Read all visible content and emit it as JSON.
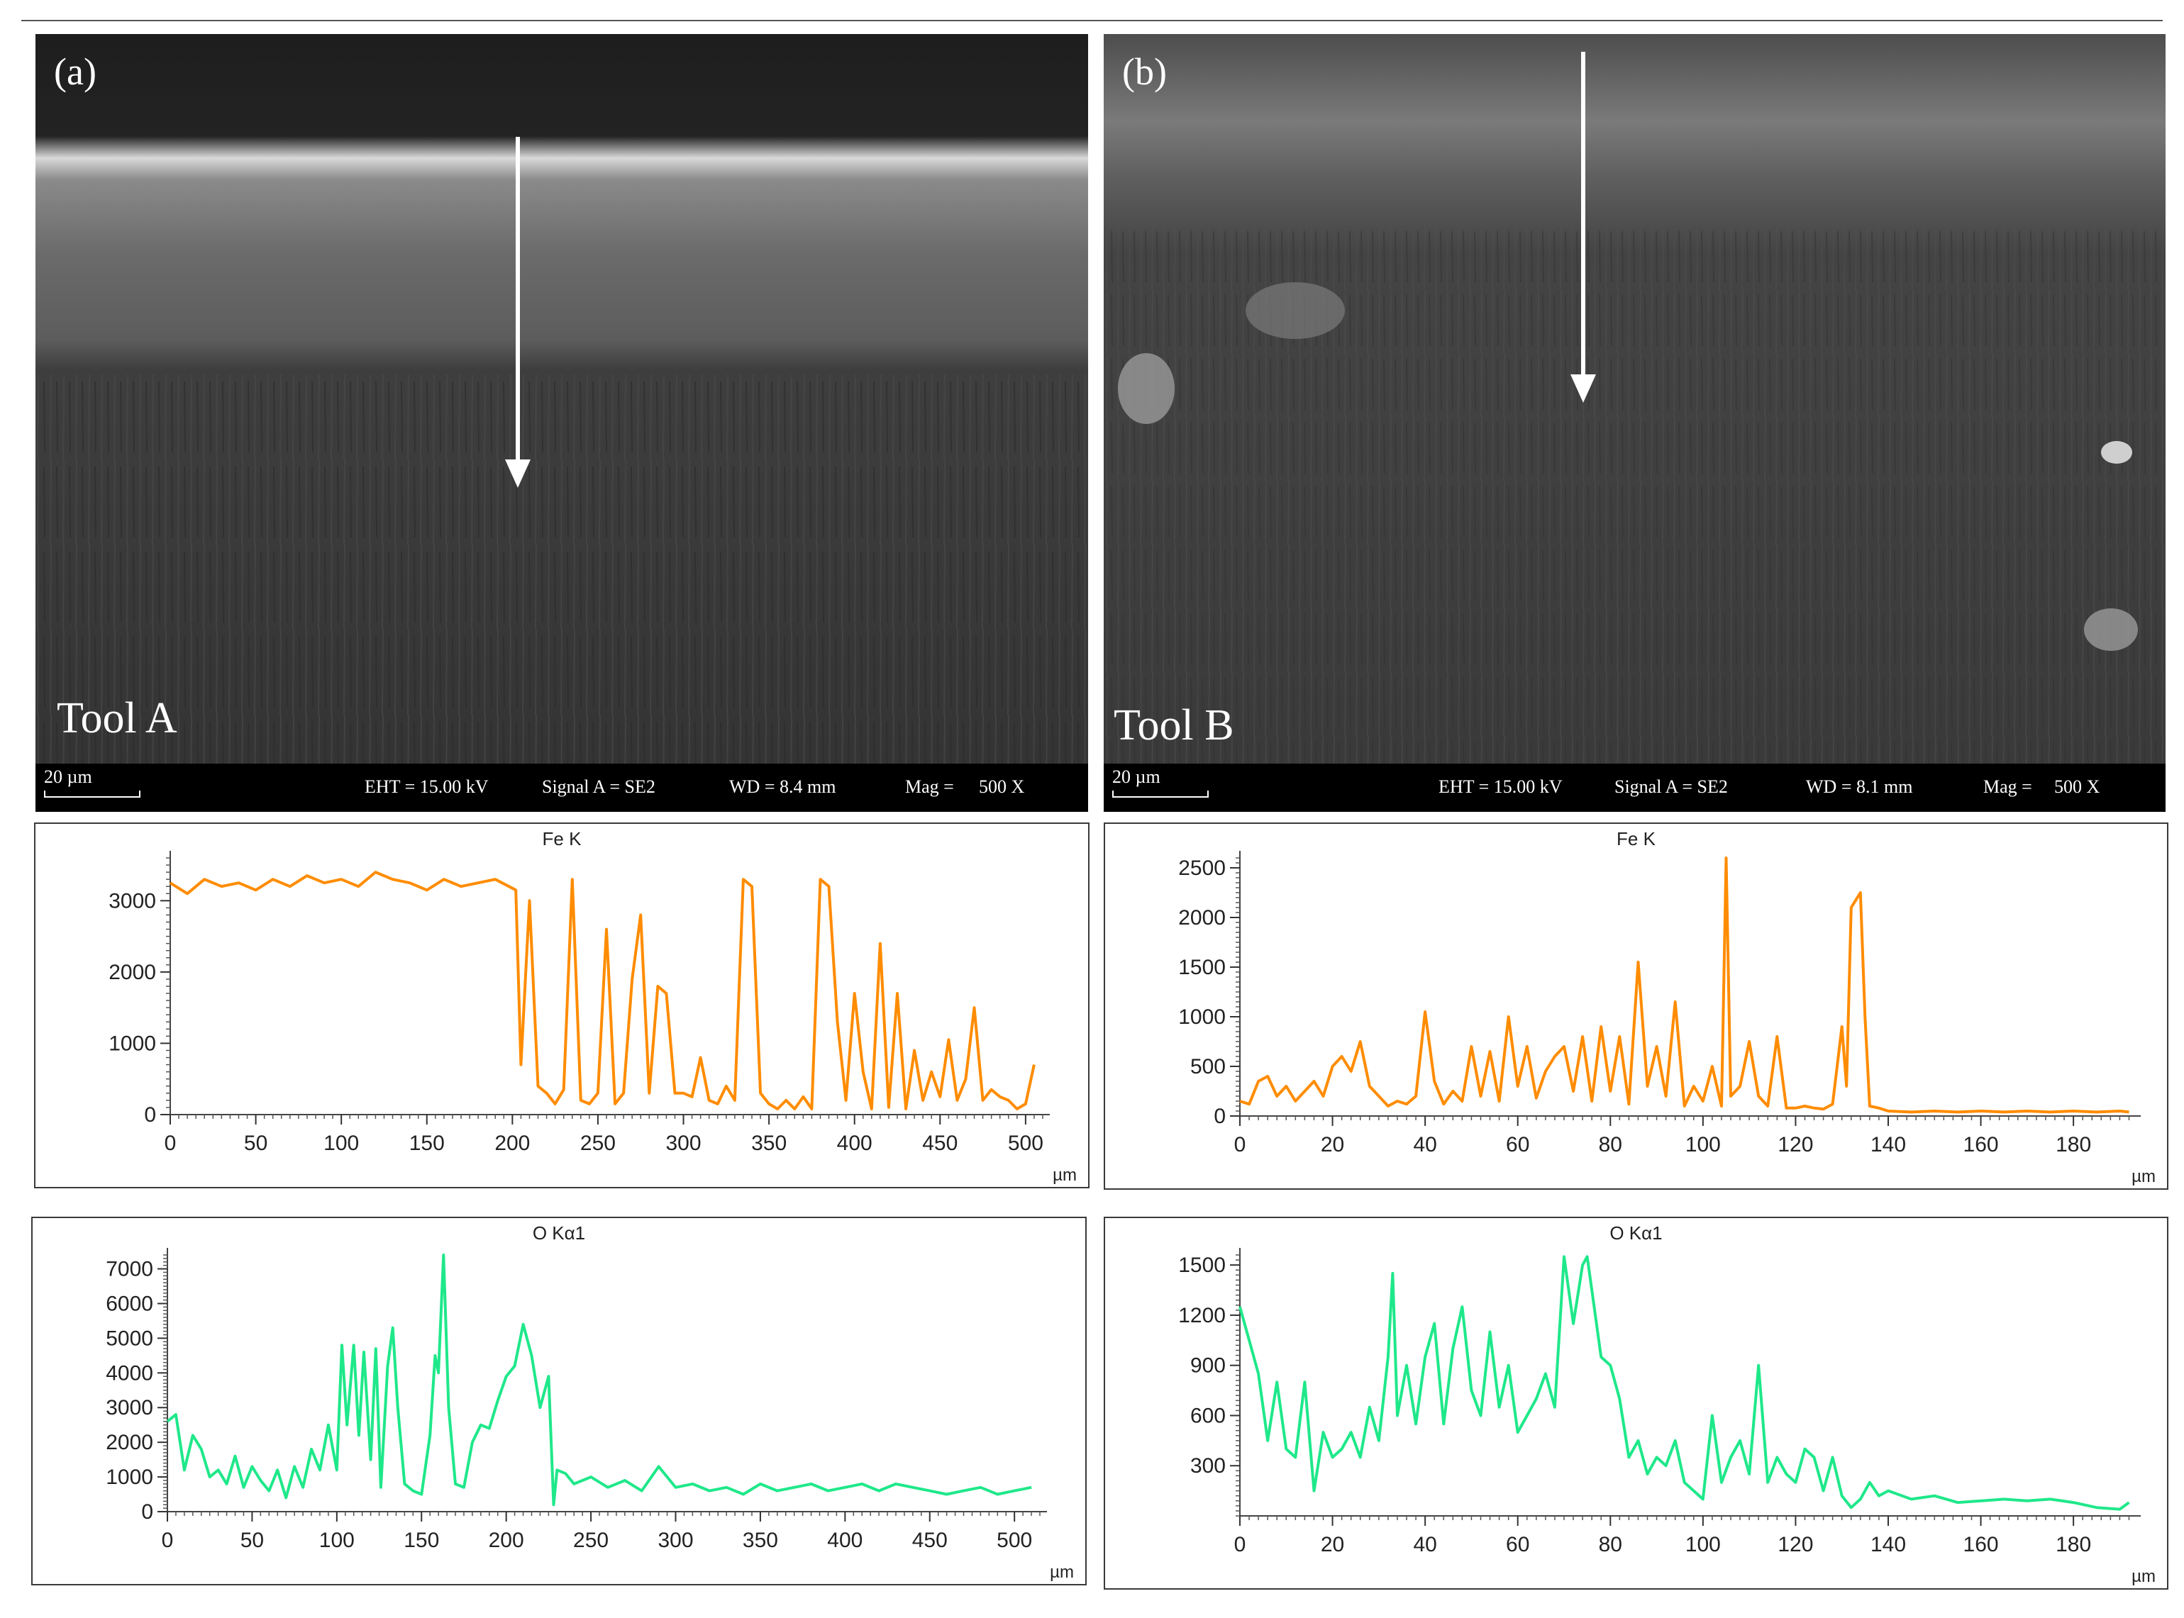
{
  "panels": [
    {
      "letter": "(a)",
      "tool": "Tool A",
      "scalebar": "20 µm",
      "eht": "EHT = 15.00 kV",
      "signal": "Signal A = SE2",
      "wd": "WD =  8.4 mm",
      "mag_label": "Mag =",
      "mag_value": "500 X"
    },
    {
      "letter": "(b)",
      "tool": "Tool B",
      "scalebar": "20 µm",
      "eht": "EHT = 15.00 kV",
      "signal": "Signal A = SE2",
      "wd": "WD =  8.1 mm",
      "mag_label": "Mag =",
      "mag_value": "500 X"
    }
  ],
  "chart_data": [
    {
      "id": "fe-a",
      "type": "line",
      "title": "Fe K",
      "xunit": "µm",
      "color": "#ff8c00",
      "xlim": [
        0,
        510
      ],
      "ylim": [
        0,
        3600
      ],
      "xticks": [
        0,
        50,
        100,
        150,
        200,
        250,
        300,
        350,
        400,
        450,
        500
      ],
      "yticks": [
        0,
        1000,
        2000,
        3000
      ],
      "x": [
        0,
        10,
        20,
        30,
        40,
        50,
        60,
        70,
        80,
        90,
        100,
        110,
        120,
        130,
        140,
        150,
        160,
        170,
        180,
        190,
        198,
        202,
        205,
        210,
        215,
        220,
        225,
        230,
        235,
        240,
        245,
        250,
        255,
        260,
        265,
        270,
        275,
        280,
        285,
        290,
        295,
        300,
        305,
        310,
        315,
        320,
        325,
        330,
        335,
        340,
        345,
        350,
        355,
        360,
        365,
        370,
        375,
        380,
        385,
        390,
        395,
        400,
        405,
        410,
        415,
        420,
        425,
        430,
        435,
        440,
        445,
        450,
        455,
        460,
        465,
        470,
        475,
        480,
        485,
        490,
        495,
        500,
        505
      ],
      "y": [
        3250,
        3100,
        3300,
        3200,
        3250,
        3150,
        3300,
        3200,
        3350,
        3250,
        3300,
        3200,
        3400,
        3300,
        3250,
        3150,
        3300,
        3200,
        3250,
        3300,
        3200,
        3150,
        700,
        3000,
        400,
        300,
        150,
        350,
        3300,
        200,
        150,
        300,
        2600,
        150,
        300,
        1900,
        2800,
        300,
        1800,
        1700,
        300,
        300,
        250,
        800,
        200,
        150,
        400,
        200,
        3300,
        3200,
        300,
        150,
        80,
        200,
        80,
        250,
        80,
        3300,
        3200,
        1300,
        200,
        1700,
        600,
        80,
        2400,
        100,
        1700,
        80,
        900,
        200,
        600,
        250,
        1050,
        200,
        500,
        1500,
        200,
        350,
        250,
        200,
        80,
        150,
        700
      ]
    },
    {
      "id": "fe-b",
      "type": "line",
      "title": "Fe K",
      "xunit": "µm",
      "color": "#ff8c00",
      "xlim": [
        0,
        193
      ],
      "ylim": [
        0,
        2600
      ],
      "xticks": [
        0,
        20,
        40,
        60,
        80,
        100,
        120,
        140,
        160,
        180
      ],
      "yticks": [
        0,
        500,
        1000,
        1500,
        2000,
        2500
      ],
      "x": [
        0,
        2,
        4,
        6,
        8,
        10,
        12,
        14,
        16,
        18,
        20,
        22,
        24,
        26,
        28,
        30,
        32,
        34,
        36,
        38,
        40,
        42,
        44,
        46,
        48,
        50,
        52,
        54,
        56,
        58,
        60,
        62,
        64,
        66,
        68,
        70,
        72,
        74,
        76,
        78,
        80,
        82,
        84,
        86,
        88,
        90,
        92,
        94,
        96,
        98,
        100,
        102,
        104,
        105,
        106,
        108,
        110,
        112,
        114,
        116,
        118,
        120,
        122,
        124,
        126,
        128,
        130,
        131,
        132,
        134,
        135,
        136,
        138,
        140,
        145,
        150,
        155,
        160,
        165,
        170,
        175,
        180,
        185,
        190,
        192
      ],
      "y": [
        150,
        120,
        350,
        400,
        200,
        300,
        150,
        250,
        350,
        200,
        500,
        600,
        450,
        750,
        300,
        200,
        100,
        150,
        120,
        200,
        1050,
        350,
        120,
        250,
        150,
        700,
        200,
        650,
        150,
        1000,
        300,
        700,
        180,
        450,
        600,
        700,
        250,
        800,
        150,
        900,
        250,
        800,
        120,
        1550,
        300,
        700,
        200,
        1150,
        100,
        300,
        150,
        500,
        100,
        2600,
        200,
        300,
        750,
        200,
        100,
        800,
        80,
        80,
        100,
        80,
        70,
        120,
        900,
        300,
        2100,
        2250,
        1000,
        100,
        80,
        50,
        40,
        50,
        40,
        50,
        40,
        50,
        40,
        50,
        40,
        50,
        40
      ]
    },
    {
      "id": "o-a",
      "type": "line",
      "title": "O Kα1",
      "xunit": "µm",
      "color": "#1fe88a",
      "xlim": [
        0,
        515
      ],
      "ylim": [
        0,
        7400
      ],
      "xticks": [
        0,
        50,
        100,
        150,
        200,
        250,
        300,
        350,
        400,
        450,
        500
      ],
      "yticks": [
        0,
        1000,
        2000,
        3000,
        4000,
        5000,
        6000,
        7000
      ],
      "x": [
        0,
        5,
        10,
        15,
        20,
        25,
        30,
        35,
        40,
        45,
        50,
        55,
        60,
        65,
        70,
        75,
        80,
        85,
        90,
        95,
        100,
        103,
        106,
        110,
        113,
        116,
        120,
        123,
        126,
        130,
        133,
        136,
        140,
        145,
        150,
        155,
        158,
        160,
        163,
        166,
        170,
        175,
        180,
        185,
        190,
        195,
        200,
        205,
        210,
        215,
        220,
        225,
        228,
        230,
        235,
        240,
        250,
        260,
        270,
        280,
        290,
        300,
        310,
        320,
        330,
        340,
        350,
        360,
        370,
        380,
        390,
        400,
        410,
        420,
        430,
        440,
        450,
        460,
        470,
        480,
        490,
        500,
        510
      ],
      "y": [
        2600,
        2800,
        1200,
        2200,
        1800,
        1000,
        1200,
        800,
        1600,
        700,
        1300,
        900,
        600,
        1200,
        400,
        1300,
        700,
        1800,
        1200,
        2500,
        1200,
        4800,
        2500,
        4800,
        2200,
        4600,
        1500,
        4700,
        700,
        4200,
        5300,
        3000,
        800,
        600,
        500,
        2200,
        4500,
        4000,
        7400,
        3000,
        800,
        700,
        2000,
        2500,
        2400,
        3200,
        3900,
        4200,
        5400,
        4500,
        3000,
        3900,
        200,
        1200,
        1100,
        800,
        1000,
        700,
        900,
        600,
        1300,
        700,
        800,
        600,
        700,
        500,
        800,
        600,
        700,
        800,
        600,
        700,
        800,
        600,
        800,
        700,
        600,
        500,
        600,
        700,
        500,
        600,
        700
      ]
    },
    {
      "id": "o-b",
      "type": "line",
      "title": "O Kα1",
      "xunit": "µm",
      "color": "#1fe88a",
      "xlim": [
        0,
        193
      ],
      "ylim": [
        0,
        1560
      ],
      "xticks": [
        0,
        20,
        40,
        60,
        80,
        100,
        120,
        140,
        160,
        180
      ],
      "yticks": [
        300,
        600,
        900,
        1200,
        1500
      ],
      "x": [
        0,
        2,
        4,
        6,
        8,
        10,
        12,
        14,
        16,
        18,
        20,
        22,
        24,
        26,
        28,
        30,
        32,
        33,
        34,
        36,
        38,
        40,
        42,
        44,
        46,
        48,
        50,
        52,
        54,
        56,
        58,
        60,
        62,
        64,
        66,
        68,
        70,
        72,
        74,
        75,
        76,
        78,
        80,
        82,
        84,
        86,
        88,
        90,
        92,
        94,
        96,
        98,
        100,
        102,
        104,
        106,
        108,
        110,
        112,
        114,
        116,
        118,
        120,
        122,
        124,
        126,
        128,
        130,
        132,
        134,
        136,
        138,
        140,
        145,
        150,
        155,
        160,
        165,
        170,
        175,
        180,
        185,
        190,
        192
      ],
      "y": [
        1250,
        1050,
        850,
        450,
        800,
        400,
        350,
        800,
        150,
        500,
        350,
        400,
        500,
        350,
        650,
        450,
        950,
        1450,
        600,
        900,
        550,
        950,
        1150,
        550,
        1000,
        1250,
        750,
        600,
        1100,
        650,
        900,
        500,
        600,
        700,
        850,
        650,
        1550,
        1150,
        1500,
        1550,
        1350,
        950,
        900,
        700,
        350,
        450,
        250,
        350,
        300,
        450,
        200,
        150,
        100,
        600,
        200,
        350,
        450,
        250,
        900,
        200,
        350,
        250,
        200,
        400,
        350,
        150,
        350,
        120,
        50,
        100,
        200,
        120,
        150,
        100,
        120,
        80,
        90,
        100,
        90,
        100,
        80,
        50,
        40,
        80
      ]
    }
  ]
}
